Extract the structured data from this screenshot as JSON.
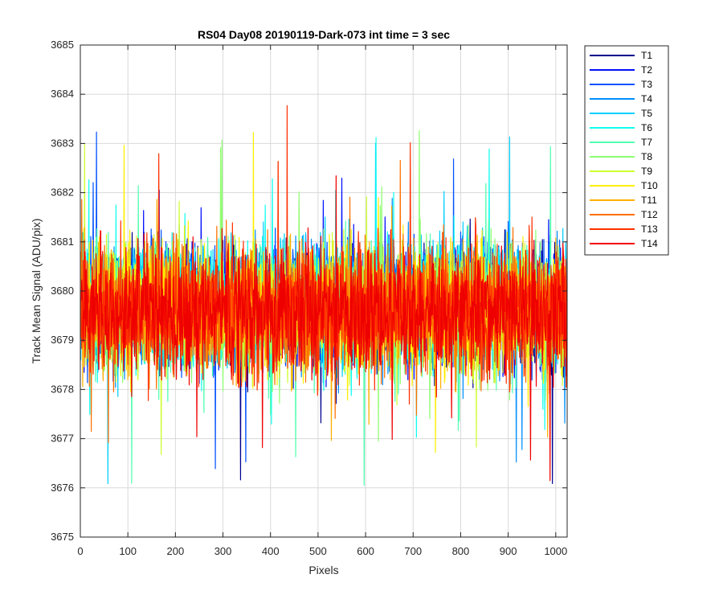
{
  "chart_data": {
    "type": "line",
    "title": "RS04 Day08 20190119-Dark-073 int time = 3 sec",
    "xlabel": "Pixels",
    "ylabel": "Track Mean Signal (ADU/pix)",
    "xlim": [
      0,
      1024
    ],
    "ylim": [
      3675,
      3685
    ],
    "xticks": [
      0,
      100,
      200,
      300,
      400,
      500,
      600,
      700,
      800,
      900,
      1000
    ],
    "yticks": [
      3675,
      3676,
      3677,
      3678,
      3679,
      3680,
      3681,
      3682,
      3683,
      3684,
      3685
    ],
    "grid": true,
    "legend_position": "outside-top-right",
    "points_per_series": 1024,
    "series_style": "noise around 3679.6 ADU, mostly within 3678-3681.5, occasional spikes 3675-3684.2",
    "series": [
      {
        "name": "T1",
        "color": "#00008f",
        "mean": 3679.7,
        "std": 0.9
      },
      {
        "name": "T2",
        "color": "#0010ff",
        "mean": 3679.7,
        "std": 0.9
      },
      {
        "name": "T3",
        "color": "#0050ff",
        "mean": 3679.7,
        "std": 0.9
      },
      {
        "name": "T4",
        "color": "#008fff",
        "mean": 3679.7,
        "std": 0.9
      },
      {
        "name": "T5",
        "color": "#00cfff",
        "mean": 3679.7,
        "std": 0.9
      },
      {
        "name": "T6",
        "color": "#10ffef",
        "mean": 3679.7,
        "std": 0.9
      },
      {
        "name": "T7",
        "color": "#50ffaf",
        "mean": 3679.6,
        "std": 0.9
      },
      {
        "name": "T8",
        "color": "#8fff70",
        "mean": 3679.6,
        "std": 0.9
      },
      {
        "name": "T9",
        "color": "#cfff30",
        "mean": 3679.6,
        "std": 0.9
      },
      {
        "name": "T10",
        "color": "#ffef00",
        "mean": 3679.6,
        "std": 0.9
      },
      {
        "name": "T11",
        "color": "#ffaf00",
        "mean": 3679.6,
        "std": 0.9
      },
      {
        "name": "T12",
        "color": "#ff7000",
        "mean": 3679.6,
        "std": 0.9
      },
      {
        "name": "T13",
        "color": "#ff3000",
        "mean": 3679.6,
        "std": 0.9
      },
      {
        "name": "T14",
        "color": "#ef0000",
        "mean": 3679.6,
        "std": 0.9
      }
    ]
  }
}
